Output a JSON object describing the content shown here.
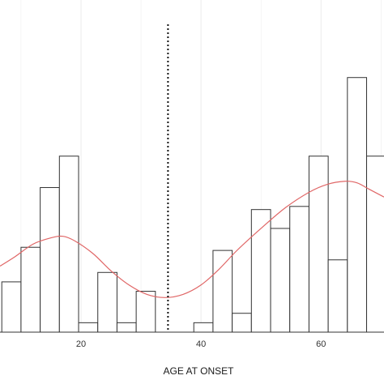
{
  "chart_data": {
    "type": "bar",
    "title": "",
    "xlabel": "AGE AT ONSET",
    "ylabel": "",
    "xlim": [
      6.5,
      70.5
    ],
    "ylim": [
      0,
      10
    ],
    "x_ticks": [
      20,
      40,
      60
    ],
    "x_tick_labels": [
      "20",
      "40",
      "60"
    ],
    "grid": true,
    "bin_width": 3.2,
    "bins": [
      {
        "start": 6.8,
        "end": 10.0,
        "count": 1.6
      },
      {
        "start": 10.0,
        "end": 13.2,
        "count": 2.7
      },
      {
        "start": 13.2,
        "end": 16.4,
        "count": 4.6
      },
      {
        "start": 16.4,
        "end": 19.6,
        "count": 5.6
      },
      {
        "start": 19.6,
        "end": 22.8,
        "count": 0.3
      },
      {
        "start": 22.8,
        "end": 26.0,
        "count": 1.9
      },
      {
        "start": 26.0,
        "end": 29.2,
        "count": 0.3
      },
      {
        "start": 29.2,
        "end": 32.4,
        "count": 1.3
      },
      {
        "start": 38.8,
        "end": 42.0,
        "count": 0.3
      },
      {
        "start": 42.0,
        "end": 45.2,
        "count": 2.6
      },
      {
        "start": 45.2,
        "end": 48.4,
        "count": 0.6
      },
      {
        "start": 48.4,
        "end": 51.6,
        "count": 3.9
      },
      {
        "start": 51.6,
        "end": 54.8,
        "count": 3.3
      },
      {
        "start": 54.8,
        "end": 58.0,
        "count": 4.0
      },
      {
        "start": 58.0,
        "end": 61.2,
        "count": 5.6
      },
      {
        "start": 61.2,
        "end": 64.4,
        "count": 2.3
      },
      {
        "start": 64.4,
        "end": 67.6,
        "count": 8.1
      },
      {
        "start": 67.6,
        "end": 70.8,
        "count": 5.6
      }
    ],
    "density_curve": {
      "x": [
        6.5,
        9,
        12,
        15,
        17,
        19,
        22,
        25,
        28,
        31,
        34,
        37,
        40,
        43,
        46,
        50,
        54,
        58,
        61,
        64,
        66,
        68,
        70.5
      ],
      "y": [
        2.1,
        2.4,
        2.8,
        3.0,
        3.05,
        2.9,
        2.5,
        1.95,
        1.5,
        1.2,
        1.1,
        1.2,
        1.5,
        2.0,
        2.6,
        3.3,
        3.95,
        4.45,
        4.7,
        4.8,
        4.75,
        4.55,
        4.3
      ]
    },
    "reference_line": {
      "x": 34.5,
      "style": "dotted"
    },
    "colors": {
      "bar_fill": "#ffffff",
      "bar_stroke": "#333333",
      "curve": "#e06666",
      "grid": "#ebebeb",
      "reference_line": "#111111"
    }
  }
}
